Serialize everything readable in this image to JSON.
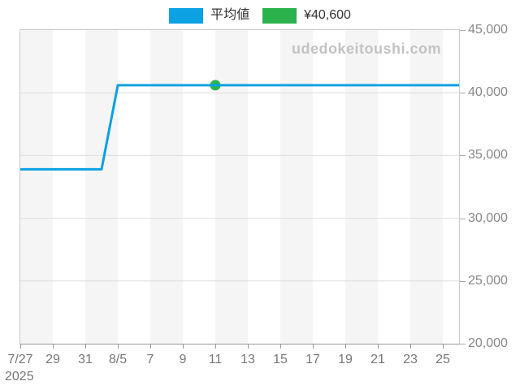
{
  "legend": {
    "items": [
      {
        "label": "平均値",
        "color": "#0ba1e2"
      },
      {
        "label": "¥40,600",
        "color": "#2bb24c"
      }
    ]
  },
  "watermark": {
    "text": "udedokeitoushi.com",
    "color": "#c3c3c3"
  },
  "chart_data": {
    "type": "line",
    "x": [
      "7/27",
      "7/28",
      "7/29",
      "7/30",
      "7/31",
      "8/1",
      "8/5",
      "8/6",
      "8/7",
      "8/8",
      "8/9",
      "8/10",
      "8/11",
      "8/12",
      "8/13",
      "8/14",
      "8/15",
      "8/16",
      "8/17",
      "8/18",
      "8/19",
      "8/20",
      "8/21",
      "8/22",
      "8/23",
      "8/24",
      "8/25",
      "8/26"
    ],
    "series": [
      {
        "name": "平均値",
        "color": "#0ba1e2",
        "values": [
          33900,
          33900,
          33900,
          33900,
          33900,
          33900,
          40600,
          40600,
          40600,
          40600,
          40600,
          40600,
          40600,
          40600,
          40600,
          40600,
          40600,
          40600,
          40600,
          40600,
          40600,
          40600,
          40600,
          40600,
          40600,
          40600,
          40600,
          40600
        ]
      }
    ],
    "marker": {
      "x": "8/11",
      "x_index": 12,
      "value": 40600,
      "label": "¥40,600",
      "color": "#2bb24c"
    },
    "ylim": [
      20000,
      45000
    ],
    "ytick_interval": 5000,
    "ytick_labels": [
      "45,000",
      "40,000",
      "35,000",
      "30,000",
      "25,000",
      "20,000"
    ],
    "xtick_labels": [
      "7/27",
      "29",
      "31",
      "8/5",
      "7",
      "9",
      "11",
      "13",
      "15",
      "17",
      "19",
      "21",
      "23",
      "25"
    ],
    "xtick_indices": [
      0,
      2,
      4,
      6,
      8,
      10,
      12,
      14,
      16,
      18,
      20,
      22,
      24,
      26
    ],
    "year_label": "2025",
    "grid": "horizontal-only",
    "gridline_color": "#dddddd",
    "stripe_colors": [
      "#f5f5f5",
      "#ffffff"
    ],
    "axis_label_color": "#777777",
    "legend_position": "top-center"
  }
}
